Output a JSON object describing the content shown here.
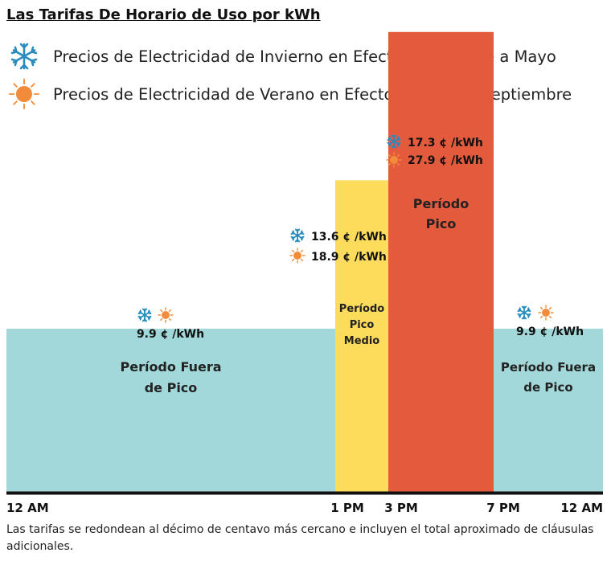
{
  "title": "Las Tarifas De Horario de Uso por kWh",
  "legend": [
    {
      "icon": "snowflake-icon",
      "text": "Precios de Electricidad de Invierno en Efecto de Octubre a Mayo"
    },
    {
      "icon": "sun-icon",
      "text": "Precios de Electricidad de Verano en Efecto de Junio a Septiembre"
    }
  ],
  "colors": {
    "off_peak": "#a2d8d9",
    "mid_peak": "#fddc5c",
    "peak": "#e45a3c",
    "winter_icon": "#2a8bbd",
    "summer_icon": "#f28c3a",
    "axis": "#111111"
  },
  "chart_data": {
    "type": "bar",
    "x_axis": "time of day",
    "tick_labels": [
      "12 AM",
      "1 PM",
      "3 PM",
      "7 PM",
      "12 AM"
    ],
    "periods": [
      {
        "name": "Período Fuera de Pico",
        "label_lines": [
          "Período Fuera",
          "de Pico"
        ],
        "start_hour": 0,
        "end_hour": 13,
        "winter_rate": 9.9,
        "summer_rate": 9.9,
        "rate_label": "9.9 ¢ /kWh",
        "color": "#a2d8d9"
      },
      {
        "name": "Período Pico Medio",
        "label_lines": [
          "Período",
          "Pico",
          "Medio"
        ],
        "start_hour": 13,
        "end_hour": 15,
        "winter_rate": 13.6,
        "summer_rate": 18.9,
        "winter_label": "13.6 ¢ /kWh",
        "summer_label": "18.9 ¢ /kWh",
        "color": "#fddc5c"
      },
      {
        "name": "Período Pico",
        "label_lines": [
          "Período",
          "Pico"
        ],
        "start_hour": 15,
        "end_hour": 19,
        "winter_rate": 17.3,
        "summer_rate": 27.9,
        "winter_label": "17.3 ¢ /kWh",
        "summer_label": "27.9 ¢ /kWh",
        "color": "#e45a3c"
      },
      {
        "name": "Período Fuera de Pico",
        "label_lines": [
          "Período Fuera",
          "de Pico"
        ],
        "start_hour": 19,
        "end_hour": 24,
        "winter_rate": 9.9,
        "summer_rate": 9.9,
        "rate_label": "9.9 ¢ /kWh",
        "color": "#a2d8d9"
      }
    ]
  },
  "note": "Las tarifas se redondean al décimo de centavo más cercano e incluyen el total aproximado de cláusulas adicionales."
}
